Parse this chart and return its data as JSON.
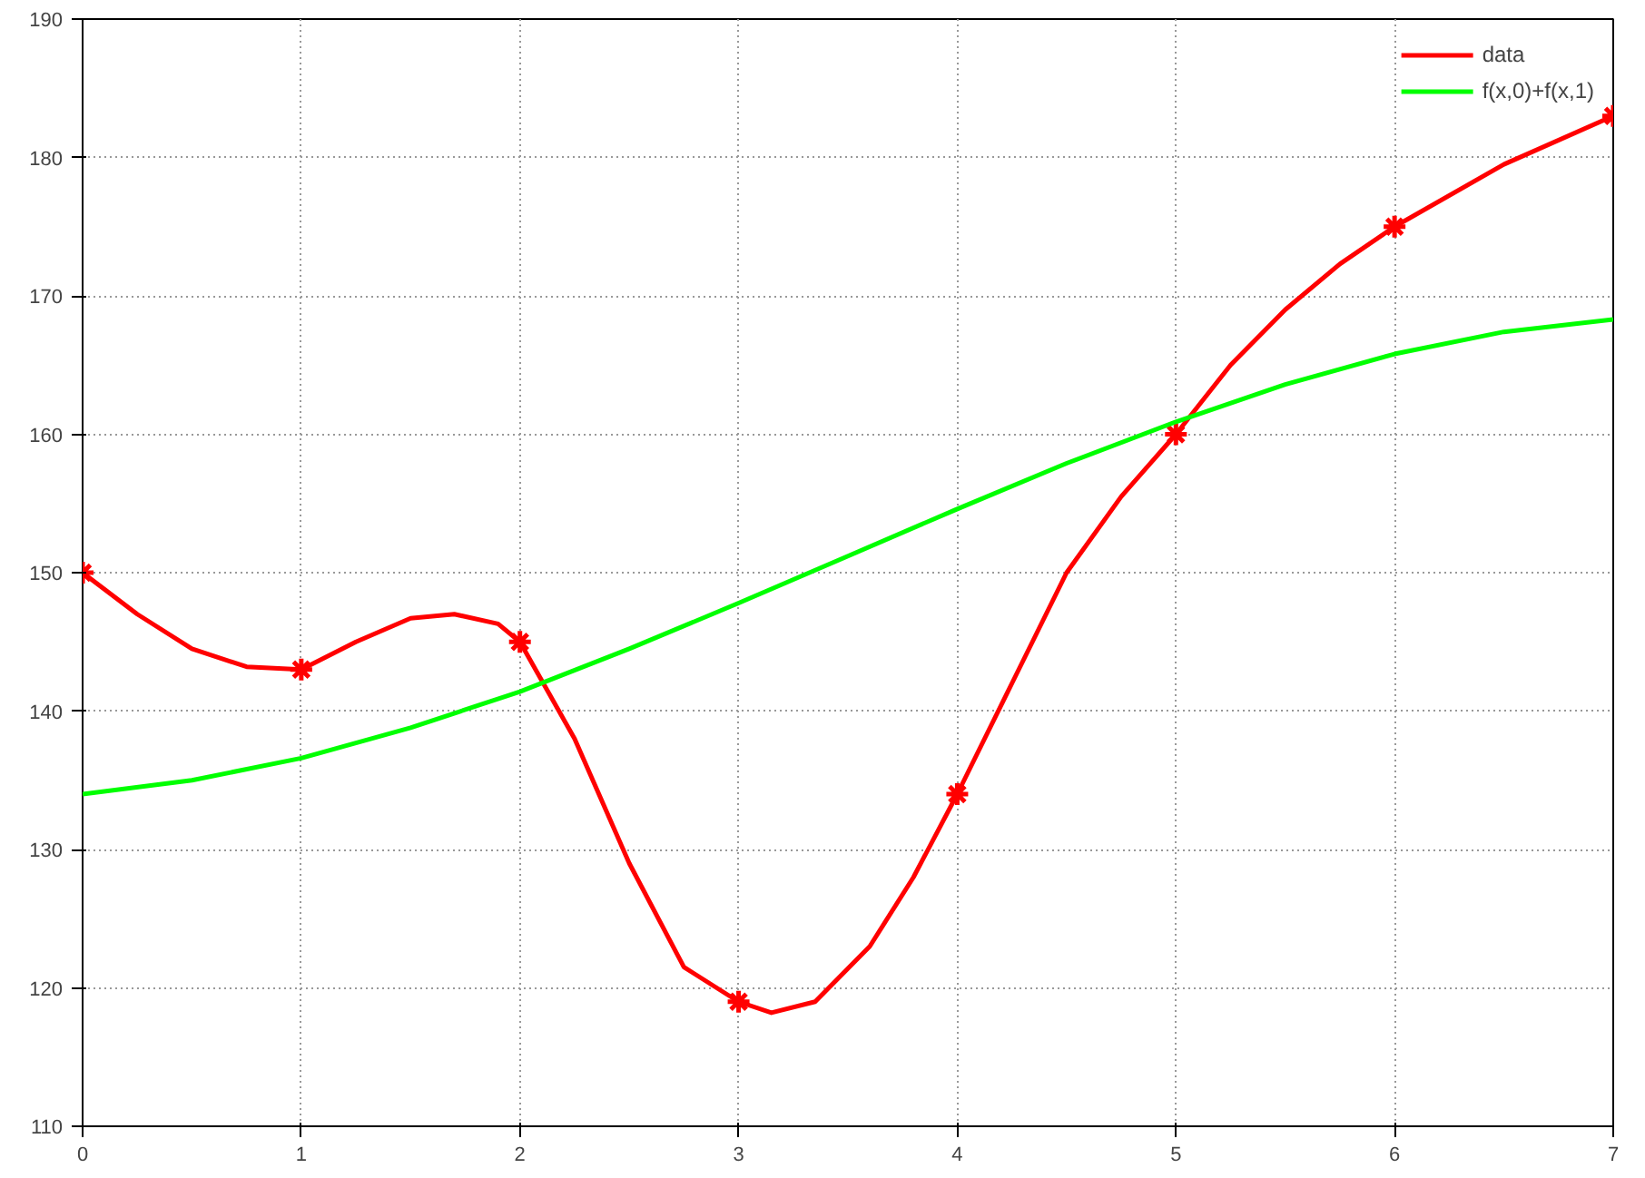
{
  "chart_data": {
    "type": "line",
    "xlim": [
      0,
      7
    ],
    "ylim": [
      110,
      190
    ],
    "xticks": [
      0,
      1,
      2,
      3,
      4,
      5,
      6,
      7
    ],
    "yticks": [
      110,
      120,
      130,
      140,
      150,
      160,
      170,
      180,
      190
    ],
    "grid": true,
    "legend": "top right",
    "line_style": "solid",
    "series": [
      {
        "name": "data",
        "color": "#ff0000",
        "x": [
          0,
          0.25,
          0.5,
          0.75,
          1,
          1.25,
          1.5,
          1.7,
          1.9,
          2,
          2.25,
          2.5,
          2.75,
          3,
          3.15,
          3.35,
          3.6,
          3.8,
          4,
          4.25,
          4.5,
          4.75,
          5,
          5.25,
          5.5,
          5.75,
          6,
          6.5,
          7
        ],
        "values": [
          150,
          147,
          144.5,
          143.2,
          143,
          145,
          146.7,
          147,
          146.3,
          145,
          138,
          129,
          121.5,
          119,
          118.2,
          119,
          123,
          128,
          134,
          142,
          150,
          155.5,
          160,
          165,
          169,
          172.3,
          175,
          179.5,
          183
        ]
      },
      {
        "type": "scatter",
        "marker": "cross",
        "color": "#ff0000",
        "x": [
          0,
          1,
          2,
          3,
          4,
          5,
          6,
          7
        ],
        "values": [
          150,
          143,
          145,
          119,
          134,
          160,
          175,
          183
        ]
      },
      {
        "name": "f(x,0)+f(x,1)",
        "color": "#00ff00",
        "x": [
          0,
          0.5,
          1,
          1.5,
          2,
          2.5,
          3,
          3.5,
          4,
          4.5,
          5,
          5.5,
          6,
          6.5,
          7
        ],
        "values": [
          134,
          135,
          136.6,
          138.8,
          141.4,
          144.5,
          147.8,
          151.2,
          154.6,
          157.9,
          160.9,
          163.6,
          165.8,
          167.4,
          168.3
        ]
      }
    ]
  }
}
